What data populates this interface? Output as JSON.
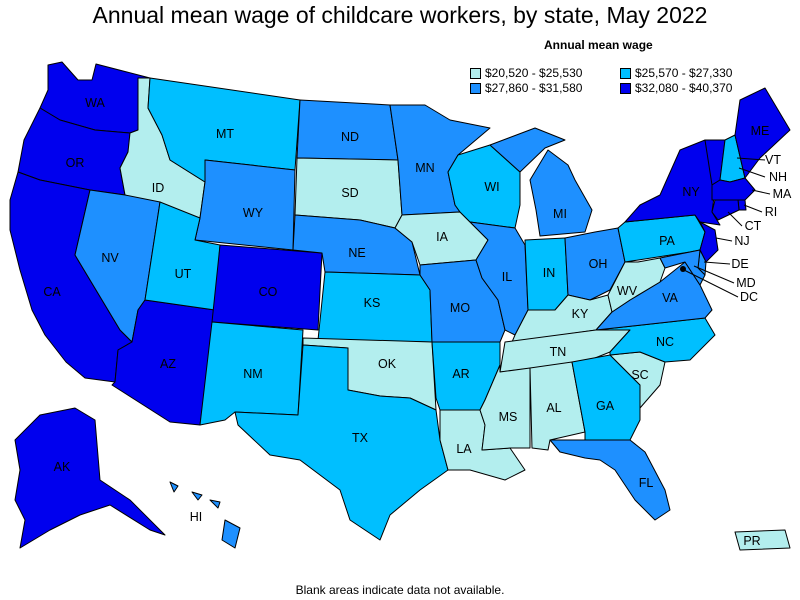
{
  "title": "Annual mean wage of childcare workers, by state, May 2022",
  "footnote": "Blank areas indicate data not available.",
  "legend": {
    "title": "Annual mean wage",
    "items": [
      {
        "range": "$20,520 - $25,530",
        "color": "#b3eeee"
      },
      {
        "range": "$25,570 - $27,330",
        "color": "#00bfff"
      },
      {
        "range": "$27,860 - $31,580",
        "color": "#1e90ff"
      },
      {
        "range": "$32,080 - $40,370",
        "color": "#0000ee"
      }
    ]
  },
  "states": {
    "WA": {
      "label": "WA",
      "tier": 3
    },
    "OR": {
      "label": "OR",
      "tier": 3
    },
    "CA": {
      "label": "CA",
      "tier": 3
    },
    "ID": {
      "label": "ID",
      "tier": 0
    },
    "NV": {
      "label": "NV",
      "tier": 2
    },
    "AZ": {
      "label": "AZ",
      "tier": 3
    },
    "MT": {
      "label": "MT",
      "tier": 1
    },
    "WY": {
      "label": "WY",
      "tier": 2
    },
    "UT": {
      "label": "UT",
      "tier": 1
    },
    "CO": {
      "label": "CO",
      "tier": 3
    },
    "NM": {
      "label": "NM",
      "tier": 1
    },
    "ND": {
      "label": "ND",
      "tier": 2
    },
    "SD": {
      "label": "SD",
      "tier": 0
    },
    "NE": {
      "label": "NE",
      "tier": 2
    },
    "KS": {
      "label": "KS",
      "tier": 1
    },
    "OK": {
      "label": "OK",
      "tier": 0
    },
    "TX": {
      "label": "TX",
      "tier": 1
    },
    "MN": {
      "label": "MN",
      "tier": 2
    },
    "IA": {
      "label": "IA",
      "tier": 0
    },
    "MO": {
      "label": "MO",
      "tier": 2
    },
    "AR": {
      "label": "AR",
      "tier": 1
    },
    "LA": {
      "label": "LA",
      "tier": 0
    },
    "WI": {
      "label": "WI",
      "tier": 1
    },
    "IL": {
      "label": "IL",
      "tier": 2
    },
    "MI": {
      "label": "MI",
      "tier": 2
    },
    "IN": {
      "label": "IN",
      "tier": 1
    },
    "OH": {
      "label": "OH",
      "tier": 2
    },
    "KY": {
      "label": "KY",
      "tier": 0
    },
    "TN": {
      "label": "TN",
      "tier": 0
    },
    "MS": {
      "label": "MS",
      "tier": 0
    },
    "AL": {
      "label": "AL",
      "tier": 0
    },
    "GA": {
      "label": "GA",
      "tier": 1
    },
    "FL": {
      "label": "FL",
      "tier": 2
    },
    "SC": {
      "label": "SC",
      "tier": 0
    },
    "NC": {
      "label": "NC",
      "tier": 1
    },
    "VA": {
      "label": "VA",
      "tier": 2
    },
    "WV": {
      "label": "WV",
      "tier": 0
    },
    "PA": {
      "label": "PA",
      "tier": 1
    },
    "NY": {
      "label": "NY",
      "tier": 3
    },
    "VT": {
      "label": "VT",
      "tier": 3
    },
    "NH": {
      "label": "NH",
      "tier": 1
    },
    "ME": {
      "label": "ME",
      "tier": 3
    },
    "MA": {
      "label": "MA",
      "tier": 3
    },
    "RI": {
      "label": "RI",
      "tier": 3
    },
    "CT": {
      "label": "CT",
      "tier": 3
    },
    "NJ": {
      "label": "NJ",
      "tier": 3
    },
    "DE": {
      "label": "DE",
      "tier": 2
    },
    "MD": {
      "label": "MD",
      "tier": 2
    },
    "DC": {
      "label": "DC",
      "tier": 3
    },
    "AK": {
      "label": "AK",
      "tier": 3
    },
    "HI": {
      "label": "HI",
      "tier": 2
    },
    "PR": {
      "label": "PR",
      "tier": 0
    }
  }
}
